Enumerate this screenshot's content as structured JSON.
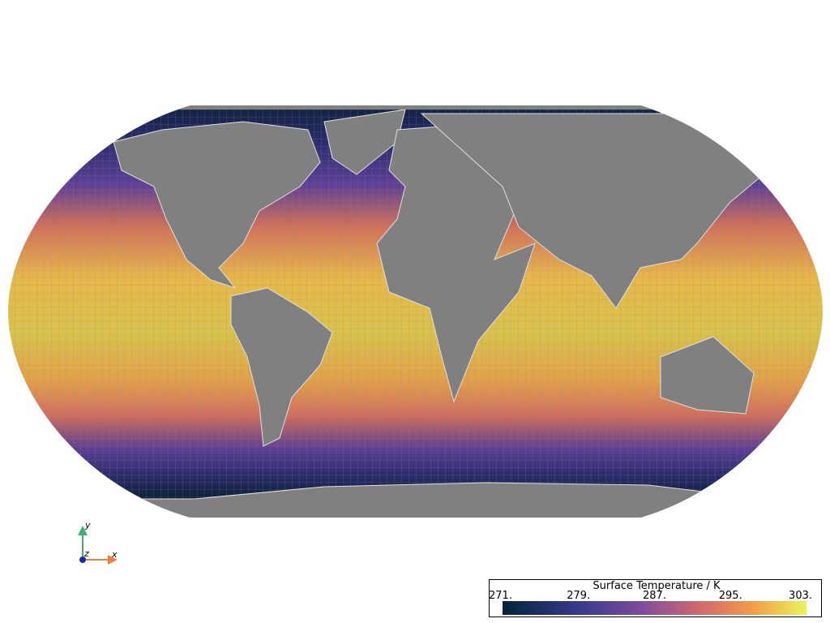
{
  "colorbar": {
    "title": "Surface Temperature / K",
    "range": [
      271,
      303
    ],
    "ticks": [
      {
        "value": 271,
        "label": "271."
      },
      {
        "value": 279,
        "label": "279."
      },
      {
        "value": 287,
        "label": "287."
      },
      {
        "value": 295,
        "label": "295."
      },
      {
        "value": 303,
        "label": "303."
      }
    ]
  },
  "axes_widget": {
    "x_label": "x",
    "y_label": "y",
    "z_label": "z"
  }
}
